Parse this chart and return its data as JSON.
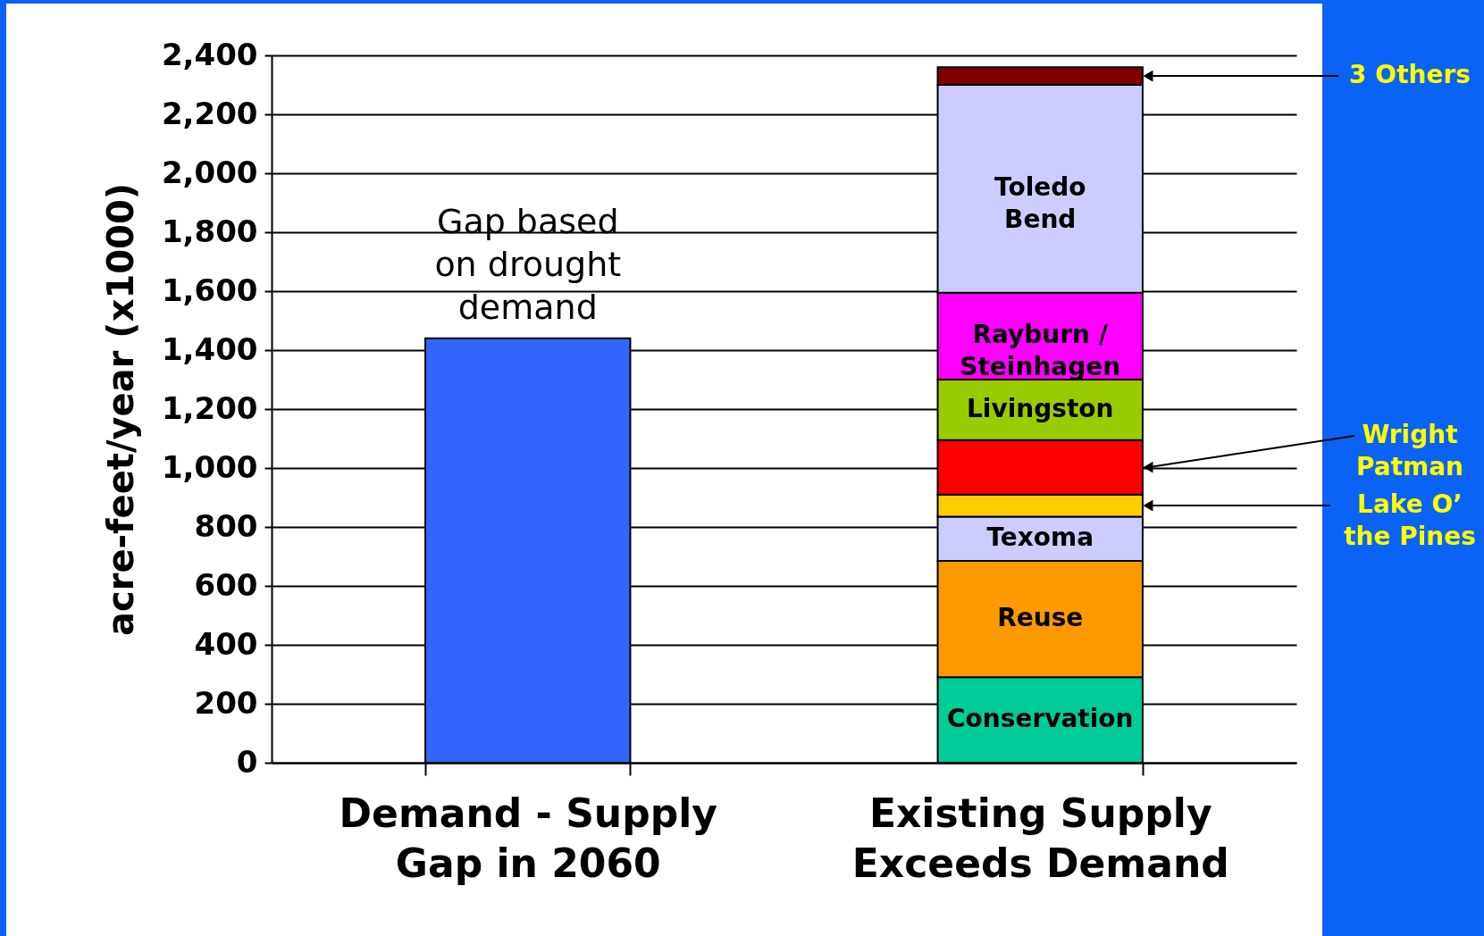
{
  "chart_data": {
    "type": "bar",
    "stacked": true,
    "ylabel": "acre-feet/year (x1000)",
    "categories": [
      "Demand - Supply Gap in 2060",
      "Existing Supply Exceeds Demand"
    ],
    "ylim": [
      0,
      2400
    ],
    "yticks": [
      0,
      200,
      400,
      600,
      800,
      {
        "value": 1000,
        "label": "1,000"
      },
      {
        "value": 1200,
        "label": "1,200"
      },
      {
        "value": 1400,
        "label": "1,400"
      },
      {
        "value": 1600,
        "label": "1,600"
      },
      {
        "value": 1800,
        "label": "1,800"
      },
      {
        "value": 2000,
        "label": "2,000"
      },
      {
        "value": 2200,
        "label": "2,200"
      },
      {
        "value": 2400,
        "label": "2,400"
      }
    ],
    "grid": "y",
    "series": [
      {
        "color": "#3366ff",
        "values": [
          1440,
          null
        ]
      },
      {
        "name": "Conservation",
        "color": "#00cc99",
        "values": [
          null,
          290
        ]
      },
      {
        "name": "Reuse",
        "color": "#ff9900",
        "values": [
          null,
          395
        ]
      },
      {
        "name": "Texoma",
        "color": "#ccccff",
        "values": [
          null,
          150
        ]
      },
      {
        "name": "Lake O’ the Pines",
        "color": "#ffcc00",
        "values": [
          null,
          75
        ]
      },
      {
        "name": "Wright Patman",
        "color": "#ff0000",
        "values": [
          null,
          185
        ]
      },
      {
        "name": "Livingston",
        "color": "#99cc00",
        "values": [
          null,
          205
        ]
      },
      {
        "name": "Rayburn / Steinhagen",
        "color": "#ff00ff",
        "values": [
          null,
          295
        ]
      },
      {
        "name": "Toledo Bend",
        "color": "#ccccff",
        "values": [
          null,
          705
        ]
      },
      {
        "name": "3 Others",
        "color": "#800000",
        "values": [
          null,
          60
        ]
      }
    ],
    "annotations": [
      {
        "text": "Gap based on drought demand",
        "x": "Demand - Supply Gap in 2060",
        "y": 1440
      }
    ]
  }
}
